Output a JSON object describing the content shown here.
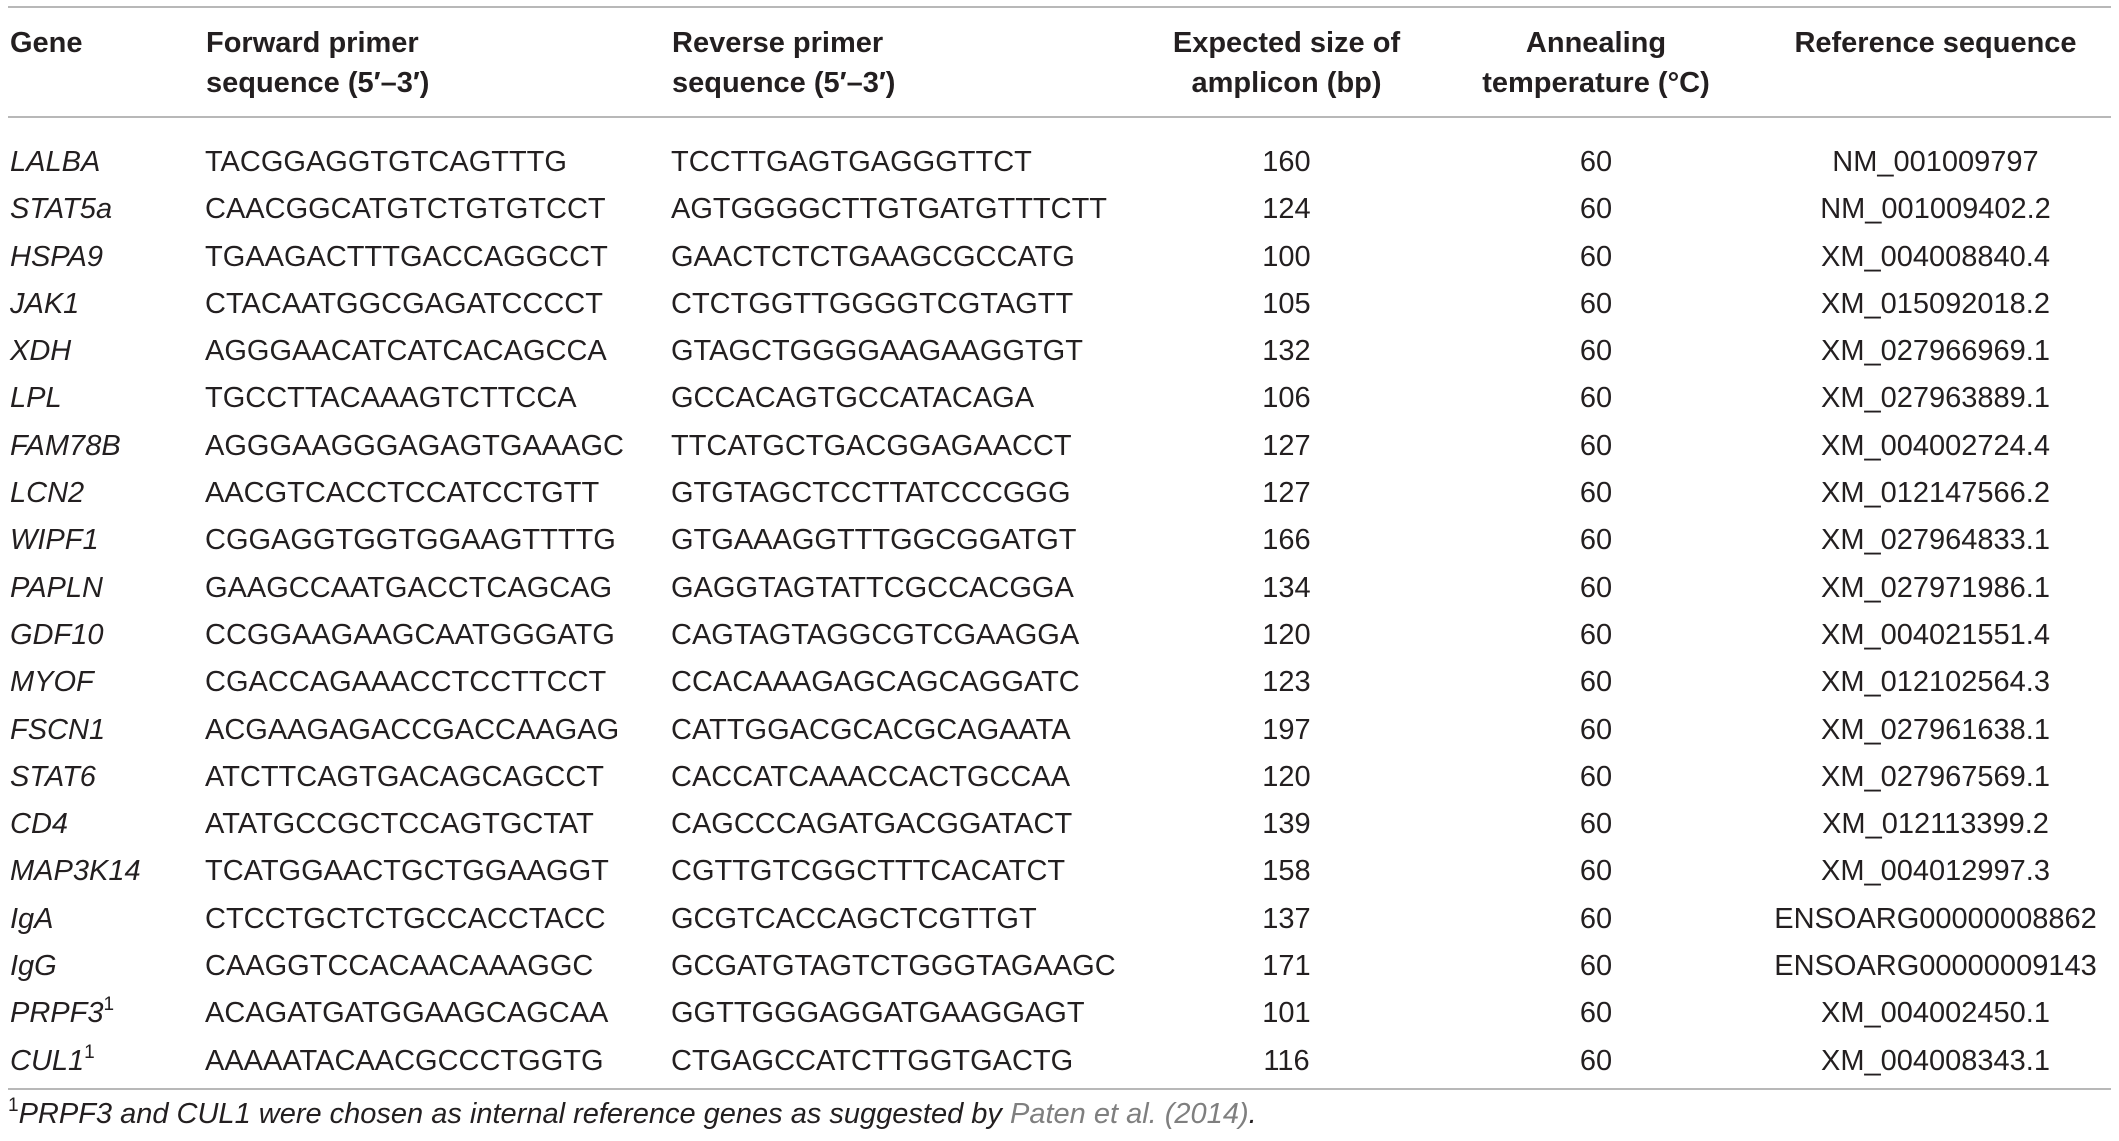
{
  "table": {
    "headers": {
      "gene": "Gene",
      "forward": [
        "Forward primer",
        "sequence (5′–3′)"
      ],
      "reverse": [
        "Reverse primer",
        "sequence (5′–3′)"
      ],
      "size": [
        "Expected size of",
        "amplicon (bp)"
      ],
      "annealing": [
        "Annealing",
        "temperature (°C)"
      ],
      "reference": "Reference sequence"
    },
    "rows": [
      {
        "gene": "LALBA",
        "sup": "",
        "forward": "TACGGAGGTGTCAGTTTG",
        "reverse": "TCCTTGAGTGAGGGTTCT",
        "size": "160",
        "temp": "60",
        "ref": "NM_001009797"
      },
      {
        "gene": "STAT5a",
        "sup": "",
        "forward": "CAACGGCATGTCTGTGTCCT",
        "reverse": "AGTGGGGCTTGTGATGTTTCTT",
        "size": "124",
        "temp": "60",
        "ref": "NM_001009402.2"
      },
      {
        "gene": "HSPA9",
        "sup": "",
        "forward": "TGAAGACTTTGACCAGGCCT",
        "reverse": "GAACTCTCTGAAGCGCCATG",
        "size": "100",
        "temp": "60",
        "ref": "XM_004008840.4"
      },
      {
        "gene": "JAK1",
        "sup": "",
        "forward": "CTACAATGGCGAGATCCCCT",
        "reverse": "CTCTGGTTGGGGTCGTAGTT",
        "size": "105",
        "temp": "60",
        "ref": "XM_015092018.2"
      },
      {
        "gene": "XDH",
        "sup": "",
        "forward": "AGGGAACATCATCACAGCCA",
        "reverse": "GTAGCTGGGGAAGAAGGTGT",
        "size": "132",
        "temp": "60",
        "ref": "XM_027966969.1"
      },
      {
        "gene": "LPL",
        "sup": "",
        "forward": "TGCCTTACAAAGTCTTCCA",
        "reverse": "GCCACAGTGCCATACAGA",
        "size": "106",
        "temp": "60",
        "ref": "XM_027963889.1"
      },
      {
        "gene": "FAM78B",
        "sup": "",
        "forward": "AGGGAAGGGAGAGTGAAAGC",
        "reverse": "TTCATGCTGACGGAGAACCT",
        "size": "127",
        "temp": "60",
        "ref": "XM_004002724.4"
      },
      {
        "gene": "LCN2",
        "sup": "",
        "forward": "AACGTCACCTCCATCCTGTT",
        "reverse": "GTGTAGCTCCTTATCCCGGG",
        "size": "127",
        "temp": "60",
        "ref": "XM_012147566.2"
      },
      {
        "gene": "WIPF1",
        "sup": "",
        "forward": "CGGAGGTGGTGGAAGTTTTG",
        "reverse": "GTGAAAGGTTTGGCGGATGT",
        "size": "166",
        "temp": "60",
        "ref": "XM_027964833.1"
      },
      {
        "gene": "PAPLN",
        "sup": "",
        "forward": "GAAGCCAATGACCTCAGCAG",
        "reverse": "GAGGTAGTATTCGCCACGGA",
        "size": "134",
        "temp": "60",
        "ref": "XM_027971986.1"
      },
      {
        "gene": "GDF10",
        "sup": "",
        "forward": "CCGGAAGAAGCAATGGGATG",
        "reverse": "CAGTAGTAGGCGTCGAAGGA",
        "size": "120",
        "temp": "60",
        "ref": "XM_004021551.4"
      },
      {
        "gene": "MYOF",
        "sup": "",
        "forward": "CGACCAGAAACCTCCTTCCT",
        "reverse": "CCACAAAGAGCAGCAGGATC",
        "size": "123",
        "temp": "60",
        "ref": "XM_012102564.3"
      },
      {
        "gene": "FSCN1",
        "sup": "",
        "forward": "ACGAAGAGACCGACCAAGAG",
        "reverse": "CATTGGACGCACGCAGAATA",
        "size": "197",
        "temp": "60",
        "ref": "XM_027961638.1"
      },
      {
        "gene": "STAT6",
        "sup": "",
        "forward": "ATCTTCAGTGACAGCAGCCT",
        "reverse": "CACCATCAAACCACTGCCAA",
        "size": "120",
        "temp": "60",
        "ref": "XM_027967569.1"
      },
      {
        "gene": "CD4",
        "sup": "",
        "forward": "ATATGCCGCTCCAGTGCTAT",
        "reverse": "CAGCCCAGATGACGGATACT",
        "size": "139",
        "temp": "60",
        "ref": "XM_012113399.2"
      },
      {
        "gene": "MAP3K14",
        "sup": "",
        "forward": "TCATGGAACTGCTGGAAGGT",
        "reverse": "CGTTGTCGGCTTTCACATCT",
        "size": "158",
        "temp": "60",
        "ref": "XM_004012997.3"
      },
      {
        "gene": "IgA",
        "sup": "",
        "forward": "CTCCTGCTCTGCCACCTACC",
        "reverse": "GCGTCACCAGCTCGTTGT",
        "size": "137",
        "temp": "60",
        "ref": "ENSOARG00000008862"
      },
      {
        "gene": "IgG",
        "sup": "",
        "forward": "CAAGGTCCACAACAAAGGC",
        "reverse": "GCGATGTAGTCTGGGTAGAAGC",
        "size": "171",
        "temp": "60",
        "ref": "ENSOARG00000009143"
      },
      {
        "gene": "PRPF3",
        "sup": "1",
        "forward": "ACAGATGATGGAAGCAGCAA",
        "reverse": "GGTTGGGAGGATGAAGGAGT",
        "size": "101",
        "temp": "60",
        "ref": "XM_004002450.1"
      },
      {
        "gene": "CUL1",
        "sup": "1",
        "forward": "AAAAATACAACGCCCTGGTG",
        "reverse": "CTGAGCCATCTTGGTGACTG",
        "size": "116",
        "temp": "60",
        "ref": "XM_004008343.1"
      }
    ]
  },
  "footnote": {
    "marker": "1",
    "text": "PRPF3 and CUL1 were chosen as internal reference genes as suggested by ",
    "link": "Paten et al. (2014)",
    "end": "."
  }
}
